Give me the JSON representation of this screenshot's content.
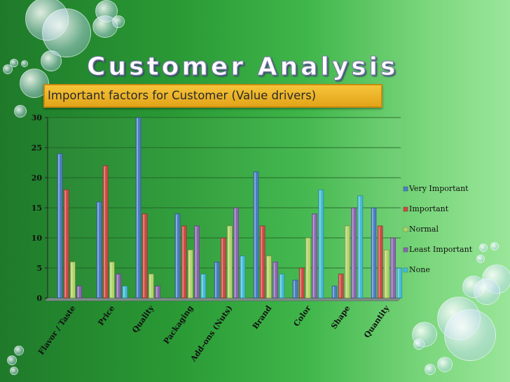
{
  "slide": {
    "title": "Customer Analysis",
    "subtitle": "Important factors for Customer (Value drivers)"
  },
  "chart_data": {
    "type": "bar",
    "categories": [
      "Flavor / Taste",
      "Price",
      "Quality",
      "Packaging",
      "Add–ons (Nuts)",
      "Brand",
      "Color",
      "Shape",
      "Quantity"
    ],
    "series": [
      {
        "name": "Very Important",
        "color": "#4a7ec4",
        "values": [
          24,
          16,
          30,
          14,
          6,
          21,
          3,
          2,
          15
        ]
      },
      {
        "name": "Important",
        "color": "#cc4a44",
        "values": [
          18,
          22,
          14,
          12,
          10,
          12,
          5,
          4,
          12
        ]
      },
      {
        "name": "Normal",
        "color": "#b4d46a",
        "values": [
          6,
          6,
          4,
          8,
          12,
          7,
          10,
          12,
          8
        ]
      },
      {
        "name": "Least Important",
        "color": "#8a66b0",
        "values": [
          2,
          4,
          2,
          12,
          15,
          6,
          14,
          15,
          10
        ]
      },
      {
        "name": "None",
        "color": "#44bcd8",
        "values": [
          0,
          2,
          0,
          4,
          7,
          4,
          18,
          17,
          5
        ]
      }
    ],
    "yticks": [
      0,
      5,
      10,
      15,
      20,
      25,
      30
    ],
    "ylim": [
      0,
      30
    ],
    "grid": true,
    "legend_position": "right"
  }
}
